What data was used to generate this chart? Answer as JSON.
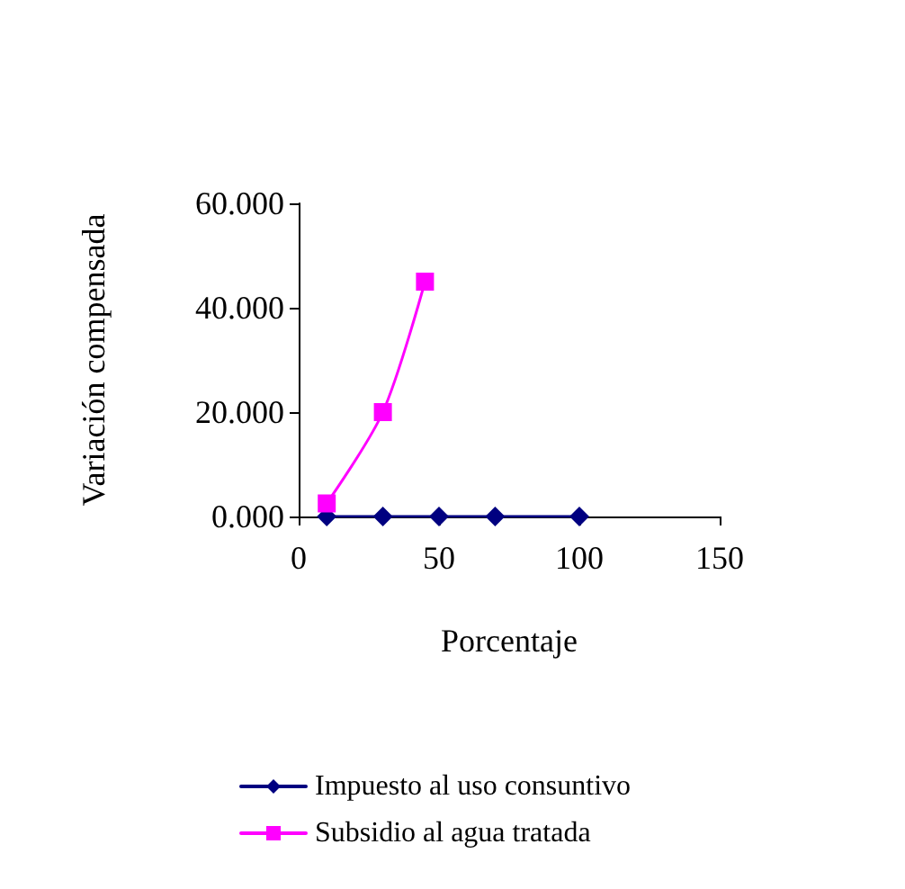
{
  "chart_data": {
    "type": "line",
    "xlabel": "Porcentaje",
    "ylabel": "Variación compensada",
    "xlim": [
      0,
      150
    ],
    "xticks": [
      0,
      50,
      100,
      150
    ],
    "ylim": [
      0,
      60
    ],
    "yticks": [
      {
        "value": 0,
        "label": "0.000"
      },
      {
        "value": 20,
        "label": "20.000"
      },
      {
        "value": 40,
        "label": "40.000"
      },
      {
        "value": 60,
        "label": "60.000"
      }
    ],
    "grid": false,
    "legend": "bottom",
    "series": [
      {
        "name": "Impuesto al uso consuntivo",
        "color": "#000080",
        "marker": "diamond",
        "x": [
          10,
          30,
          50,
          70,
          100
        ],
        "values": [
          0,
          0,
          0,
          0,
          0
        ]
      },
      {
        "name": "Subsidio al agua tratada",
        "color": "#ff00ff",
        "marker": "square",
        "x": [
          10,
          30,
          45
        ],
        "values": [
          2.5,
          20,
          45
        ]
      }
    ]
  }
}
